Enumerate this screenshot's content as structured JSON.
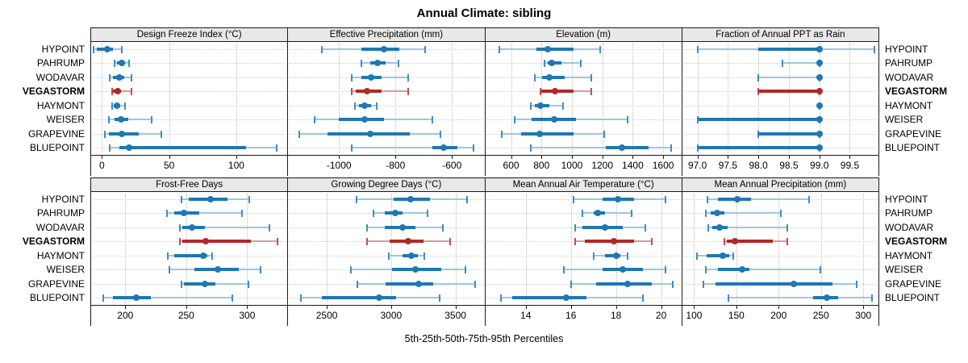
{
  "title": "Annual Climate: sibling",
  "xlabel": "5th-25th-50th-75th-95th Percentiles",
  "stations": [
    "HYPOINT",
    "PAHRUMP",
    "WODAVAR",
    "VEGASTORM",
    "HAYMONT",
    "WEISER",
    "GRAPEVINE",
    "BLUEPOINT"
  ],
  "highlight_station": "VEGASTORM",
  "percentile_labels": [
    "5th",
    "25th",
    "50th",
    "75th",
    "95th"
  ],
  "colors": {
    "normal_main": "#1f77b4",
    "normal_light": "#9fc6e0",
    "normal_cap": "#3d8ec4",
    "highlight_main": "#b22828",
    "highlight_light": "#d99c9c",
    "highlight_cap": "#c05050",
    "header_bg": "#e8e8e8",
    "border": "#1a1a1a",
    "grid": "#c8c8c8"
  },
  "chart_data": [
    {
      "type": "percentile-dotplot",
      "row": 0,
      "col": 0,
      "title": "Design Freeze Index (°C)",
      "xlim": [
        -8,
        138
      ],
      "ticks": [
        {
          "v": 0,
          "label": "0"
        },
        {
          "v": 50,
          "label": "50"
        },
        {
          "v": 100,
          "label": "100"
        }
      ],
      "series": {
        "HYPOINT": [
          -6,
          -4,
          4,
          8,
          15
        ],
        "PAHRUMP": [
          9.5,
          11.5,
          15,
          17.5,
          20
        ],
        "WODAVAR": [
          6,
          8,
          13,
          16.5,
          22
        ],
        "VEGASTORM": [
          7.5,
          8.5,
          12,
          14.5,
          22
        ],
        "HAYMONT": [
          7.5,
          9,
          11.5,
          13.5,
          17
        ],
        "WEISER": [
          5,
          9.5,
          14.5,
          19.5,
          37
        ],
        "GRAPEVINE": [
          2,
          5.5,
          15,
          27.5,
          44
        ],
        "BLUEPOINT": [
          6,
          13,
          20,
          107,
          130
        ]
      }
    },
    {
      "type": "percentile-dotplot",
      "row": 0,
      "col": 1,
      "title": "Effective Precipitation (mm)",
      "xlim": [
        -1180,
        -485
      ],
      "ticks": [
        {
          "v": -1000,
          "label": "-1000"
        },
        {
          "v": -800,
          "label": "-800"
        },
        {
          "v": -600,
          "label": "-600"
        }
      ],
      "series": {
        "HYPOINT": [
          -1060,
          -920,
          -840,
          -785,
          -695
        ],
        "PAHRUMP": [
          -920,
          -890,
          -865,
          -835,
          -790
        ],
        "WODAVAR": [
          -955,
          -920,
          -885,
          -850,
          -755
        ],
        "VEGASTORM": [
          -955,
          -940,
          -900,
          -850,
          -755
        ],
        "HAYMONT": [
          -943,
          -929,
          -908,
          -886,
          -867
        ],
        "WEISER": [
          -1085,
          -1000,
          -910,
          -840,
          -670
        ],
        "GRAPEVINE": [
          -1140,
          -1040,
          -890,
          -750,
          -640
        ],
        "BLUEPOINT": [
          -955,
          -670,
          -630,
          -580,
          -525
        ]
      }
    },
    {
      "type": "percentile-dotplot",
      "row": 0,
      "col": 2,
      "title": "Elevation (m)",
      "xlim": [
        430,
        1720
      ],
      "ticks": [
        {
          "v": 600,
          "label": "600"
        },
        {
          "v": 800,
          "label": "800"
        },
        {
          "v": 1000,
          "label": "1000"
        },
        {
          "v": 1200,
          "label": "1200"
        },
        {
          "v": 1400,
          "label": "1400"
        },
        {
          "v": 1600,
          "label": "1600"
        }
      ],
      "series": {
        "HYPOINT": [
          525,
          765,
          840,
          1010,
          1185
        ],
        "PAHRUMP": [
          820,
          840,
          870,
          930,
          1060
        ],
        "WODAVAR": [
          755,
          805,
          850,
          955,
          1125
        ],
        "VEGASTORM": [
          795,
          800,
          890,
          1010,
          1130
        ],
        "HAYMONT": [
          730,
          755,
          795,
          850,
          940
        ],
        "WEISER": [
          625,
          735,
          885,
          1025,
          1365
        ],
        "GRAPEVINE": [
          540,
          665,
          790,
          1010,
          1210
        ],
        "BLUEPOINT": [
          730,
          1225,
          1330,
          1505,
          1655
        ]
      }
    },
    {
      "type": "percentile-dotplot",
      "row": 0,
      "col": 3,
      "title": "Fraction of Annual PPT as Rain",
      "xlim": [
        96.75,
        99.97
      ],
      "ticks": [
        {
          "v": 97.0,
          "label": "97.0"
        },
        {
          "v": 97.5,
          "label": "97.5"
        },
        {
          "v": 98.0,
          "label": "98.0"
        },
        {
          "v": 98.5,
          "label": "98.5"
        },
        {
          "v": 99.0,
          "label": "99.0"
        },
        {
          "v": 99.5,
          "label": "99.5"
        }
      ],
      "series": {
        "HYPOINT": [
          97.0,
          98.0,
          99.0,
          99.0,
          99.9
        ],
        "PAHRUMP": [
          98.4,
          99.0,
          99.0,
          99.0,
          99.0
        ],
        "WODAVAR": [
          98.0,
          99.0,
          99.0,
          99.0,
          99.0
        ],
        "VEGASTORM": [
          98.0,
          98.0,
          99.0,
          99.0,
          99.0
        ],
        "HAYMONT": [
          99.0,
          99.0,
          99.0,
          99.0,
          99.0
        ],
        "WEISER": [
          97.0,
          97.0,
          99.0,
          99.0,
          99.0
        ],
        "GRAPEVINE": [
          98.0,
          98.0,
          99.0,
          99.0,
          99.0
        ],
        "BLUEPOINT": [
          97.0,
          97.0,
          99.0,
          99.0,
          99.0
        ]
      }
    },
    {
      "type": "percentile-dotplot",
      "row": 1,
      "col": 0,
      "title": "Frost-Free Days",
      "xlim": [
        172,
        333
      ],
      "ticks": [
        {
          "v": 200,
          "label": "200"
        },
        {
          "v": 250,
          "label": "250"
        },
        {
          "v": 300,
          "label": "300"
        }
      ],
      "series": {
        "HYPOINT": [
          246,
          252,
          270,
          284,
          302
        ],
        "PAHRUMP": [
          234,
          240,
          248,
          261,
          296
        ],
        "WODAVAR": [
          245,
          247,
          255,
          265,
          318
        ],
        "VEGASTORM": [
          245,
          247,
          266,
          303,
          325
        ],
        "HAYMONT": [
          235,
          240,
          264,
          267,
          271
        ],
        "WEISER": [
          236,
          257,
          276,
          293,
          311
        ],
        "GRAPEVINE": [
          246,
          248,
          265,
          274,
          301
        ],
        "BLUEPOINT": [
          182,
          190,
          209,
          221,
          288
        ]
      }
    },
    {
      "type": "percentile-dotplot",
      "row": 1,
      "col": 1,
      "title": "Growing Degree Days (°C)",
      "xlim": [
        2200,
        3725
      ],
      "ticks": [
        {
          "v": 2500,
          "label": "2500"
        },
        {
          "v": 3000,
          "label": "3000"
        },
        {
          "v": 3500,
          "label": "3500"
        }
      ],
      "series": {
        "HYPOINT": [
          2730,
          3020,
          3150,
          3300,
          3590
        ],
        "PAHRUMP": [
          2860,
          2950,
          3030,
          3090,
          3280
        ],
        "WODAVAR": [
          2815,
          2950,
          3090,
          3190,
          3400
        ],
        "VEGASTORM": [
          2810,
          2990,
          3130,
          3250,
          3460
        ],
        "HAYMONT": [
          2980,
          3090,
          3155,
          3210,
          3260
        ],
        "WEISER": [
          2690,
          3010,
          3190,
          3390,
          3575
        ],
        "GRAPEVINE": [
          2735,
          2960,
          3215,
          3330,
          3650
        ],
        "BLUEPOINT": [
          2300,
          2460,
          2905,
          3040,
          3380
        ]
      }
    },
    {
      "type": "percentile-dotplot",
      "row": 1,
      "col": 2,
      "title": "Mean Annual Air Temperature (°C)",
      "xlim": [
        12.2,
        20.9
      ],
      "ticks": [
        {
          "v": 14,
          "label": "14"
        },
        {
          "v": 16,
          "label": "16"
        },
        {
          "v": 18,
          "label": "18"
        },
        {
          "v": 20,
          "label": "20"
        }
      ],
      "series": {
        "HYPOINT": [
          16.1,
          17.4,
          18.1,
          18.8,
          20.2
        ],
        "PAHRUMP": [
          16.5,
          17.0,
          17.2,
          17.5,
          18.7
        ],
        "WODAVAR": [
          16.2,
          16.5,
          17.5,
          18.3,
          19.3
        ],
        "VEGASTORM": [
          16.2,
          16.6,
          17.9,
          18.8,
          19.6
        ],
        "HAYMONT": [
          17.0,
          17.5,
          18.0,
          18.2,
          18.5
        ],
        "WEISER": [
          15.7,
          17.4,
          18.3,
          19.2,
          20.2
        ],
        "GRAPEVINE": [
          16.0,
          17.1,
          18.5,
          19.6,
          20.5
        ],
        "BLUEPOINT": [
          12.9,
          13.4,
          15.8,
          16.7,
          19.2
        ]
      }
    },
    {
      "type": "percentile-dotplot",
      "row": 1,
      "col": 3,
      "title": "Mean Annual Precipitation (mm)",
      "xlim": [
        86,
        318
      ],
      "ticks": [
        {
          "v": 100,
          "label": "100"
        },
        {
          "v": 150,
          "label": "150"
        },
        {
          "v": 200,
          "label": "200"
        },
        {
          "v": 250,
          "label": "250"
        },
        {
          "v": 300,
          "label": "300"
        }
      ],
      "series": {
        "HYPOINT": [
          116,
          128,
          151,
          167,
          236
        ],
        "PAHRUMP": [
          114,
          120,
          127,
          136,
          203
        ],
        "WODAVAR": [
          117,
          122,
          130,
          140,
          210
        ],
        "VEGASTORM": [
          136,
          139,
          148,
          193,
          210
        ],
        "HAYMONT": [
          103,
          115,
          134,
          142,
          146
        ],
        "WEISER": [
          114,
          128,
          157,
          165,
          249
        ],
        "GRAPEVINE": [
          111,
          125,
          218,
          264,
          292
        ],
        "BLUEPOINT": [
          141,
          241,
          257,
          270,
          310
        ]
      }
    }
  ]
}
